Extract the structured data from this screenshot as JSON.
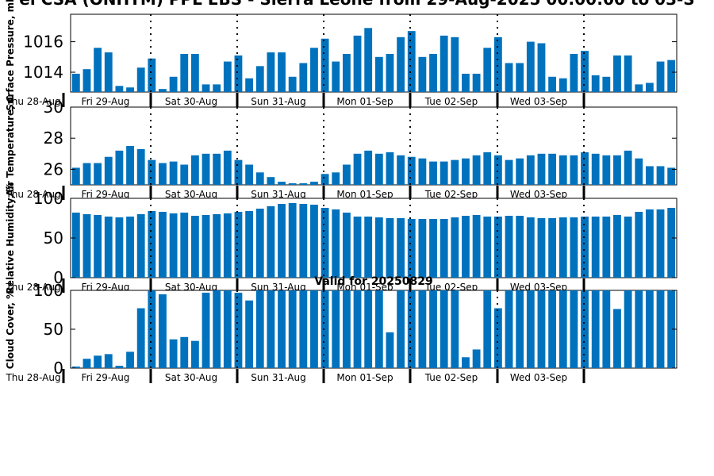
{
  "header": {
    "title": "el CSA (ONHTM) PPL EBS - Sierra Leone from 29-Aug-2025 00:00:00 to 03-S"
  },
  "bar_color": "#0072bd",
  "chart_data": [
    {
      "type": "bar",
      "ylabel": "Surface Pressure, mb",
      "ylim": [
        1012.7,
        1017.8
      ],
      "yticks": [
        1014,
        1016
      ],
      "xtick_labels": [
        "Thu 28-Aug",
        "Fri 29-Aug",
        "Sat 30-Aug",
        "Sun 31-Aug",
        "Mon 01-Sep",
        "Tue 02-Sep",
        "Wed 03-Sep"
      ],
      "values": [
        1013.9,
        1014.2,
        1015.6,
        1015.3,
        1013.1,
        1013.0,
        1014.3,
        1014.9,
        1012.9,
        1013.7,
        1015.2,
        1015.2,
        1013.2,
        1013.2,
        1014.7,
        1015.1,
        1013.6,
        1014.4,
        1015.3,
        1015.3,
        1013.7,
        1014.6,
        1015.6,
        1016.2,
        1014.7,
        1015.2,
        1016.4,
        1016.9,
        1015.0,
        1015.2,
        1016.3,
        1016.7,
        1015.0,
        1015.2,
        1016.4,
        1016.3,
        1013.9,
        1013.9,
        1015.6,
        1016.3,
        1014.6,
        1014.6,
        1016.0,
        1015.9,
        1013.7,
        1013.6,
        1015.2,
        1015.4,
        1013.8,
        1013.7,
        1015.1,
        1015.1,
        1013.2,
        1013.3,
        1014.7,
        1014.8
      ]
    },
    {
      "type": "bar",
      "ylabel": "Air Temperature, C",
      "ylim": [
        25,
        30
      ],
      "yticks": [
        26,
        28,
        30
      ],
      "xtick_labels": [
        "Thu 28-Aug",
        "Fri 29-Aug",
        "Sat 30-Aug",
        "Sun 31-Aug",
        "Mon 01-Sep",
        "Tue 02-Sep",
        "Wed 03-Sep"
      ],
      "values": [
        26.1,
        26.4,
        26.4,
        26.8,
        27.2,
        27.5,
        27.3,
        26.6,
        26.4,
        26.5,
        26.3,
        26.9,
        27.0,
        27.0,
        27.2,
        26.6,
        26.3,
        25.8,
        25.5,
        25.2,
        25.1,
        25.1,
        25.2,
        25.7,
        25.8,
        26.3,
        27.0,
        27.2,
        27.0,
        27.1,
        26.9,
        26.8,
        26.7,
        26.5,
        26.5,
        26.6,
        26.7,
        26.9,
        27.1,
        26.9,
        26.6,
        26.7,
        26.9,
        27.0,
        27.0,
        26.9,
        26.9,
        27.1,
        27.0,
        26.9,
        26.9,
        27.2,
        26.7,
        26.2,
        26.2,
        26.1
      ]
    },
    {
      "type": "bar",
      "ylabel": "Relative Humidity, %",
      "ylim": [
        0,
        100
      ],
      "yticks": [
        0,
        50,
        100
      ],
      "xtick_labels": [
        "Thu 28-Aug",
        "Fri 29-Aug",
        "Sat 30-Aug",
        "Sun 31-Aug",
        "Mon 01-Sep",
        "Tue 02-Sep",
        "Wed 03-Sep"
      ],
      "values": [
        82,
        80,
        79,
        77,
        76,
        77,
        80,
        84,
        83,
        81,
        82,
        78,
        79,
        80,
        81,
        83,
        84,
        87,
        90,
        93,
        94,
        93,
        92,
        88,
        86,
        82,
        77,
        77,
        76,
        75,
        75,
        74,
        74,
        74,
        74,
        76,
        78,
        79,
        77,
        77,
        78,
        78,
        76,
        75,
        75,
        76,
        76,
        77,
        77,
        77,
        79,
        77,
        83,
        86,
        86,
        88
      ]
    },
    {
      "type": "bar",
      "ylabel": "Cloud Cover, %",
      "ylim": [
        0,
        100
      ],
      "yticks": [
        0,
        50,
        100
      ],
      "annotation": "Valid for 20250829",
      "xtick_labels": [
        "Thu 28-Aug",
        "Fri 29-Aug",
        "Sat 30-Aug",
        "Sun 31-Aug",
        "Mon 01-Sep",
        "Tue 02-Sep",
        "Wed 03-Sep"
      ],
      "values": [
        2,
        12,
        16,
        18,
        3,
        21,
        77,
        100,
        95,
        37,
        40,
        35,
        97,
        100,
        100,
        97,
        87,
        100,
        100,
        100,
        100,
        100,
        100,
        100,
        100,
        100,
        100,
        100,
        100,
        46,
        100,
        100,
        100,
        100,
        100,
        100,
        14,
        24,
        100,
        77,
        100,
        100,
        100,
        100,
        100,
        100,
        100,
        100,
        100,
        100,
        76,
        100,
        100,
        100,
        100,
        100
      ]
    }
  ]
}
